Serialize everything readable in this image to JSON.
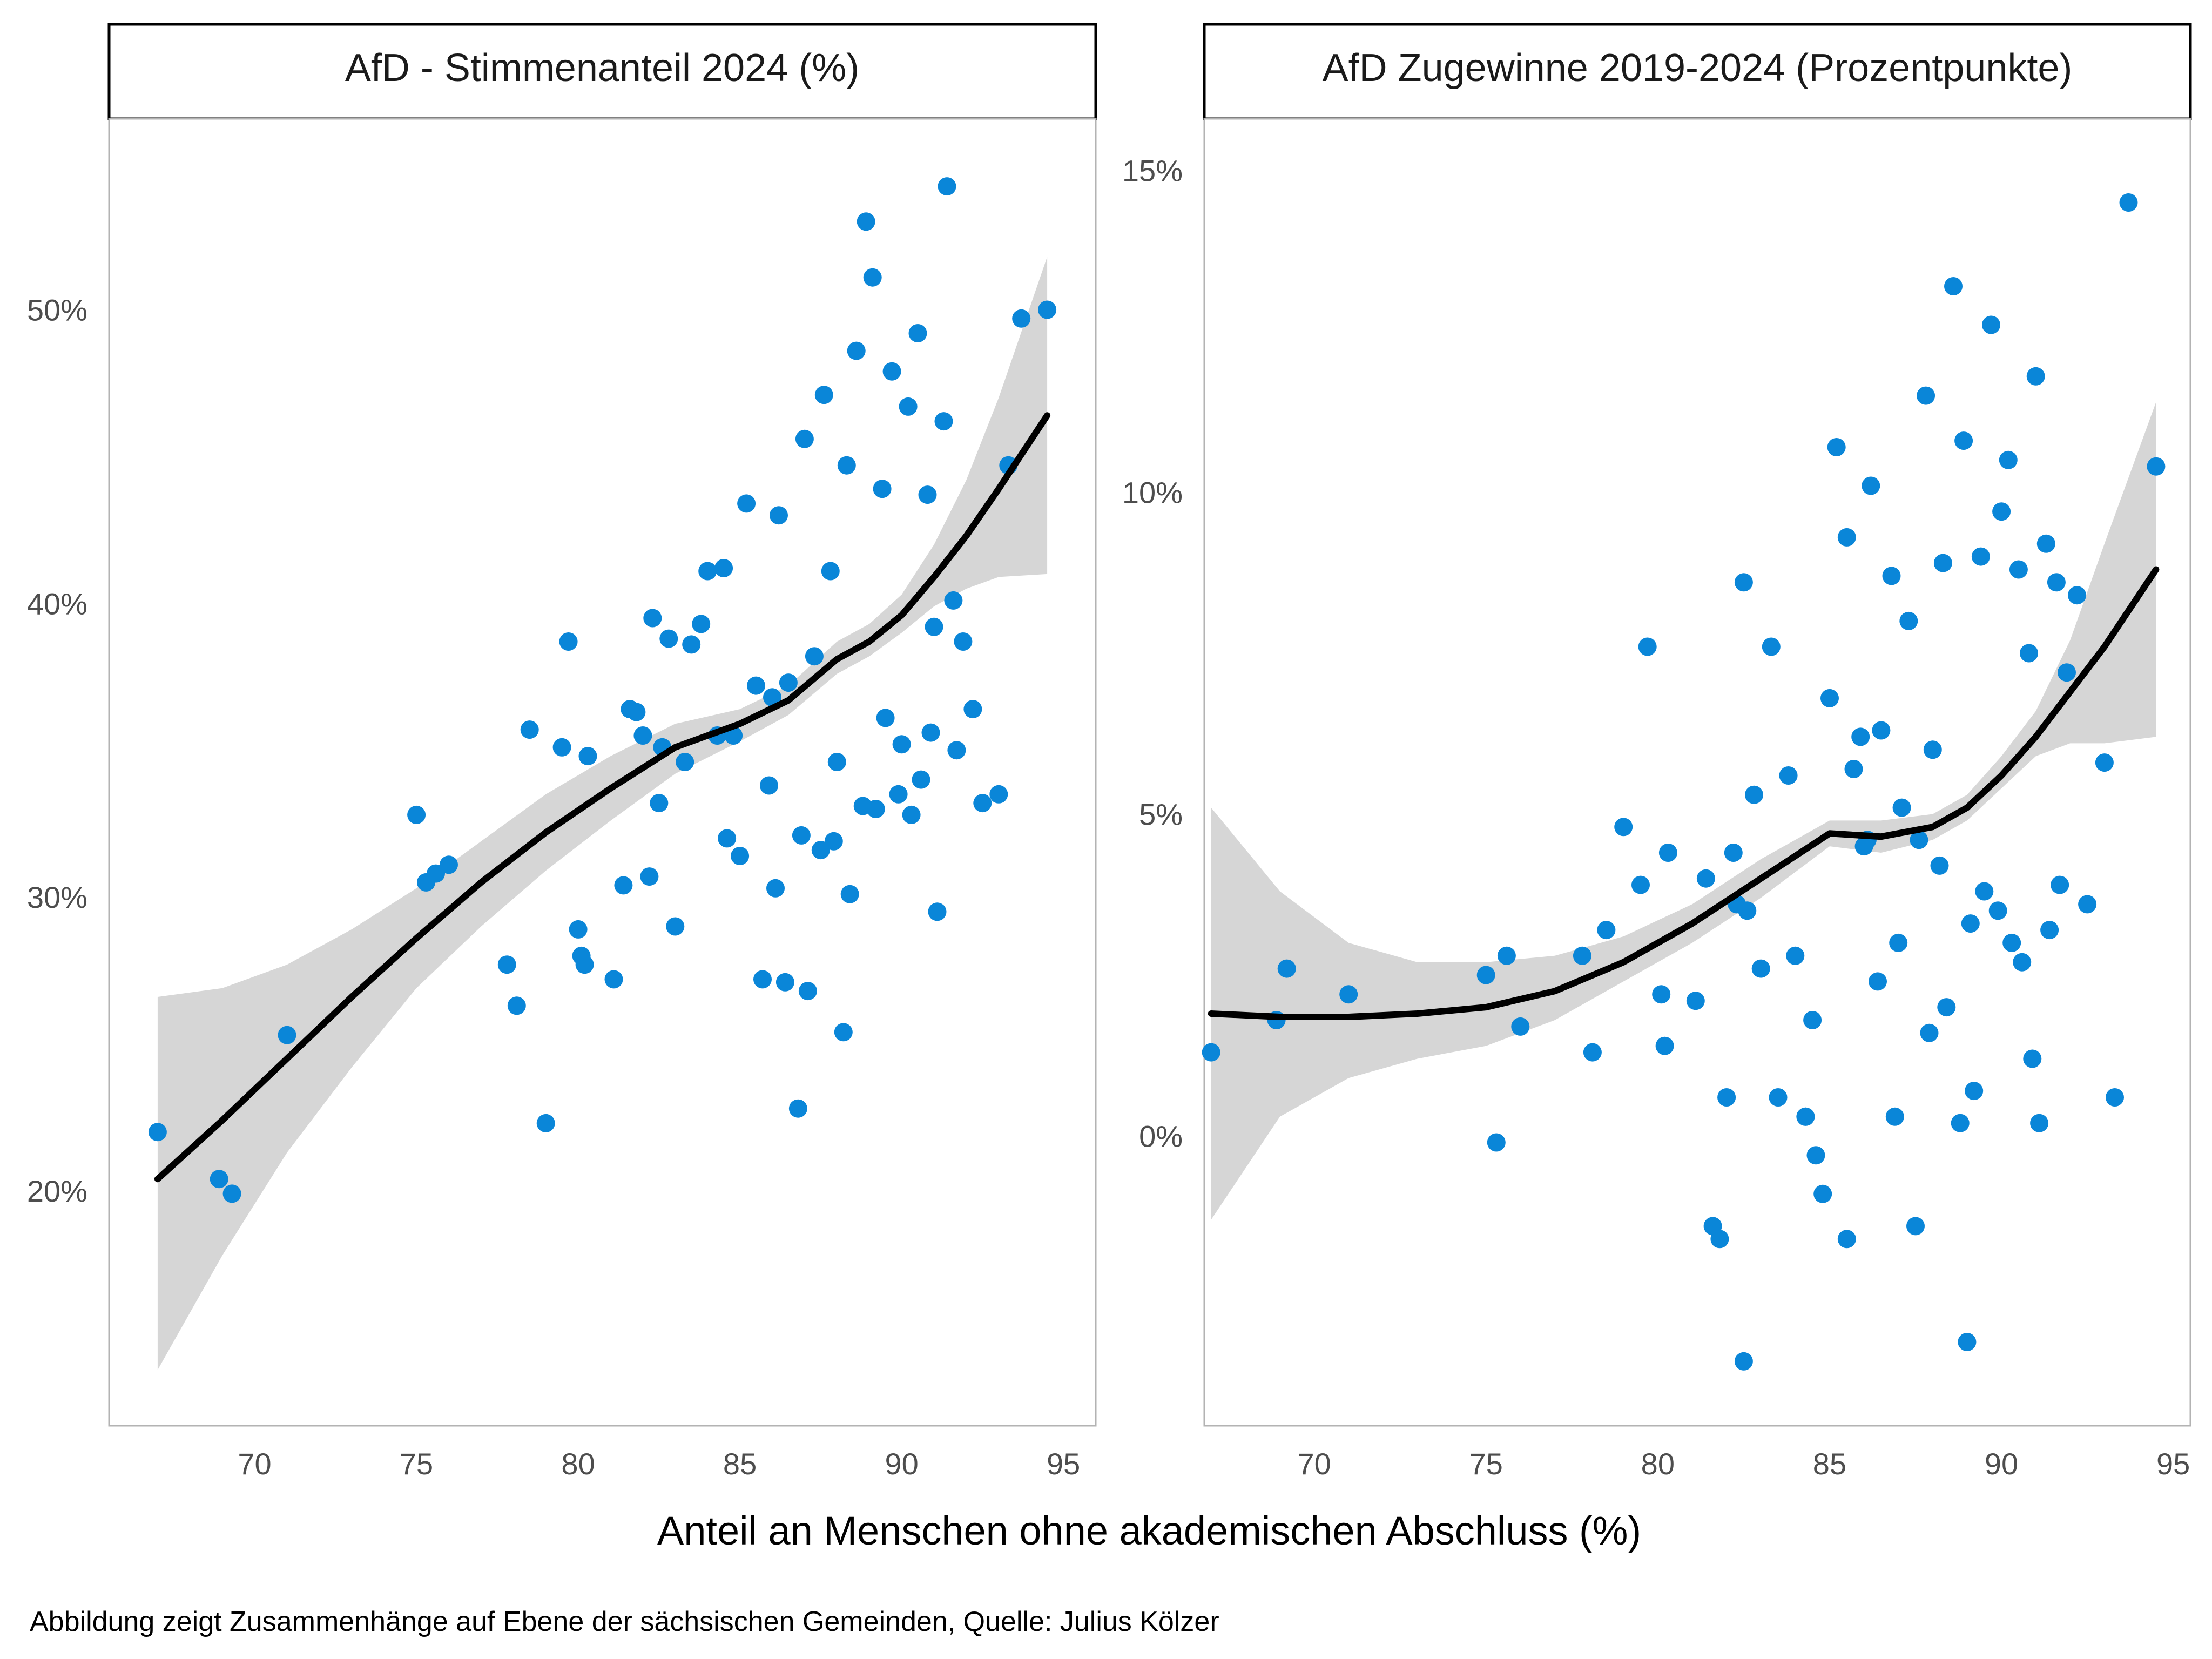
{
  "figure": {
    "xlabel": "Anteil an Menschen ohne akademischen Abschluss (%)",
    "caption": "Abbildung zeigt Zusammenhänge auf Ebene der sächsischen Gemeinden, Quelle: Julius Kölzer"
  },
  "colors": {
    "points": "#0a86d8",
    "smooth_line": "#000000",
    "confidence_band": "#d6d6d6",
    "panel_border": "#b3b3b3",
    "strip_border": "#000000"
  },
  "chart_data": [
    {
      "type": "scatter",
      "title": "AfD - Stimmenanteil 2024 (%)",
      "xlabel": "Anteil an Menschen ohne akademischen Abschluss (%)",
      "ylabel": "",
      "xlim": [
        65.5,
        96
      ],
      "ylim": [
        12,
        56.5
      ],
      "xticks": [
        70,
        75,
        80,
        85,
        90,
        95
      ],
      "xtick_labels": [
        "70",
        "75",
        "80",
        "85",
        "90",
        "95"
      ],
      "yticks": [
        20,
        30,
        40,
        50
      ],
      "ytick_labels": [
        "20%",
        "30%",
        "40%",
        "50%"
      ],
      "grid": false,
      "legend": "none",
      "points": {
        "x": [
          67.0,
          68.9,
          69.3,
          71.0,
          75.0,
          75.3,
          75.6,
          76.0,
          77.8,
          78.1,
          78.5,
          79.0,
          79.5,
          79.7,
          80.0,
          80.1,
          80.2,
          80.3,
          81.1,
          81.4,
          81.6,
          81.8,
          82.0,
          82.2,
          82.3,
          82.5,
          82.6,
          82.8,
          83.0,
          83.3,
          83.5,
          83.8,
          84.0,
          84.3,
          84.5,
          84.8,
          85.0,
          85.2,
          85.5,
          85.7,
          86.0,
          86.2,
          86.5,
          86.8,
          87.0,
          87.3,
          87.6,
          87.8,
          88.0,
          88.3,
          88.6,
          88.9,
          89.1,
          89.4,
          89.7,
          90.0,
          90.2,
          90.5,
          90.8,
          91.0,
          91.3,
          91.6,
          91.9,
          92.2,
          92.5,
          93.0,
          93.3,
          93.7,
          94.5,
          86.4,
          87.1,
          88.2,
          89.5,
          90.6,
          91.4,
          85.9,
          86.9,
          88.8,
          89.9,
          90.9,
          84.6,
          87.5,
          88.4,
          89.2,
          91.1,
          86.1,
          87.9,
          90.3,
          91.7
        ],
        "y": [
          22.0,
          20.4,
          19.9,
          25.3,
          32.8,
          30.5,
          30.8,
          31.1,
          27.7,
          26.3,
          35.7,
          22.3,
          35.1,
          38.7,
          28.9,
          28.0,
          27.7,
          34.8,
          27.2,
          30.4,
          36.4,
          36.3,
          35.5,
          30.7,
          39.5,
          33.2,
          35.1,
          38.8,
          29.0,
          34.6,
          38.6,
          39.3,
          41.1,
          35.5,
          41.2,
          35.5,
          31.4,
          43.4,
          37.2,
          27.2,
          36.8,
          43.0,
          37.3,
          22.8,
          45.6,
          38.2,
          47.1,
          41.1,
          34.6,
          44.7,
          48.6,
          53.0,
          51.1,
          43.9,
          47.9,
          35.2,
          46.7,
          49.2,
          43.7,
          39.2,
          46.2,
          40.1,
          38.7,
          36.4,
          33.2,
          33.5,
          44.7,
          49.7,
          50.0,
          27.1,
          26.8,
          25.4,
          36.1,
          34.0,
          54.2,
          33.8,
          32.1,
          33.1,
          33.5,
          35.6,
          32.0,
          31.6,
          30.1,
          33.0,
          29.5,
          30.3,
          31.9,
          32.8,
          35.0
        ]
      },
      "smooth_curve": {
        "x": [
          67.0,
          69.0,
          71.0,
          73.0,
          75.0,
          77.0,
          79.0,
          81.0,
          83.0,
          85.0,
          86.5,
          88.0,
          89.0,
          90.0,
          91.0,
          92.0,
          93.0,
          94.5
        ],
        "y": [
          20.4,
          22.4,
          24.5,
          26.6,
          28.6,
          30.5,
          32.2,
          33.7,
          35.1,
          35.9,
          36.7,
          38.1,
          38.7,
          39.6,
          40.9,
          42.3,
          43.9,
          46.4
        ]
      },
      "confidence_band": {
        "x": [
          67.0,
          69.0,
          71.0,
          73.0,
          75.0,
          77.0,
          79.0,
          81.0,
          83.0,
          85.0,
          86.5,
          88.0,
          89.0,
          90.0,
          91.0,
          92.0,
          93.0,
          94.5
        ],
        "lower": [
          13.9,
          17.8,
          21.3,
          24.2,
          26.9,
          29.0,
          30.9,
          32.6,
          34.2,
          35.3,
          36.2,
          37.6,
          38.2,
          39.0,
          39.9,
          40.5,
          40.9,
          41.0
        ],
        "upper": [
          26.6,
          26.9,
          27.7,
          28.9,
          30.3,
          31.9,
          33.5,
          34.8,
          35.9,
          36.4,
          37.2,
          38.7,
          39.3,
          40.3,
          42.0,
          44.2,
          47.0,
          51.8
        ]
      }
    },
    {
      "type": "scatter",
      "title": "AfD Zugewinne 2019-2024 (Prozentpunkte)",
      "xlabel": "Anteil an Menschen ohne akademischen Abschluss (%)",
      "ylabel": "",
      "xlim": [
        66.8,
        95.5
      ],
      "ylim": [
        -4.5,
        15.8
      ],
      "xticks": [
        70,
        75,
        80,
        85,
        90,
        95
      ],
      "xtick_labels": [
        "70",
        "75",
        "80",
        "85",
        "90",
        "95"
      ],
      "yticks": [
        0,
        5,
        10,
        15
      ],
      "ytick_labels": [
        "0%",
        "5%",
        "10%",
        "15%"
      ],
      "grid": false,
      "legend": "none",
      "points": {
        "x": [
          67.0,
          68.9,
          69.2,
          71.0,
          75.0,
          75.3,
          75.6,
          76.0,
          77.8,
          78.1,
          78.5,
          79.0,
          79.5,
          79.7,
          80.1,
          80.2,
          80.3,
          81.1,
          81.4,
          81.6,
          81.8,
          82.0,
          82.2,
          82.3,
          82.5,
          82.6,
          82.8,
          83.0,
          83.3,
          83.5,
          83.8,
          84.0,
          84.3,
          84.5,
          84.8,
          85.0,
          85.2,
          85.5,
          85.7,
          86.0,
          86.2,
          86.5,
          86.8,
          87.0,
          87.3,
          87.6,
          87.8,
          88.0,
          88.3,
          88.6,
          88.9,
          89.1,
          89.4,
          89.7,
          90.0,
          90.2,
          90.5,
          90.8,
          91.0,
          91.3,
          91.6,
          91.9,
          92.2,
          92.5,
          93.0,
          93.3,
          93.7,
          94.5,
          86.4,
          87.1,
          88.2,
          89.5,
          90.6,
          91.4,
          85.9,
          86.9,
          88.8,
          89.9,
          90.9,
          84.6,
          87.5,
          88.4,
          89.2,
          91.1,
          86.1,
          87.9,
          90.3,
          91.7,
          82.5,
          89.0,
          85.5,
          84.3
        ],
        "y": [
          1.3,
          1.8,
          2.6,
          2.2,
          2.5,
          -0.1,
          2.8,
          1.7,
          2.8,
          1.3,
          3.2,
          4.8,
          3.9,
          7.6,
          2.2,
          1.4,
          4.4,
          2.1,
          4.0,
          -1.4,
          -1.6,
          0.6,
          4.4,
          3.6,
          8.6,
          3.5,
          5.3,
          2.6,
          7.6,
          0.6,
          5.6,
          2.8,
          0.3,
          1.8,
          -0.9,
          6.8,
          10.7,
          9.3,
          5.7,
          4.5,
          10.1,
          6.3,
          8.7,
          3.0,
          8.0,
          4.6,
          11.5,
          6.0,
          8.9,
          13.2,
          10.8,
          3.3,
          9.0,
          12.6,
          9.7,
          10.5,
          8.8,
          7.5,
          11.8,
          9.2,
          8.6,
          7.2,
          8.4,
          3.6,
          5.8,
          0.6,
          14.5,
          10.4,
          2.4,
          5.1,
          4.2,
          3.8,
          2.7,
          3.2,
          6.2,
          0.3,
          0.2,
          3.5,
          1.2,
          -0.3,
          -1.4,
          2.0,
          0.7,
          0.2,
          4.6,
          1.6,
          3.0,
          3.9,
          -3.5,
          -3.2,
          -1.6,
          0.3
        ]
      },
      "smooth_curve": {
        "x": [
          67.0,
          69.0,
          71.0,
          73.0,
          75.0,
          77.0,
          79.0,
          81.0,
          83.0,
          85.0,
          86.5,
          88.0,
          89.0,
          90.0,
          91.0,
          92.0,
          93.0,
          94.5
        ],
        "y": [
          1.9,
          1.85,
          1.85,
          1.9,
          2.0,
          2.25,
          2.7,
          3.3,
          4.0,
          4.7,
          4.65,
          4.8,
          5.1,
          5.6,
          6.2,
          6.9,
          7.6,
          8.8
        ]
      },
      "confidence_band": {
        "x": [
          67.0,
          69.0,
          71.0,
          73.0,
          75.0,
          77.0,
          79.0,
          81.0,
          83.0,
          85.0,
          86.5,
          88.0,
          89.0,
          90.0,
          91.0,
          92.0,
          93.0,
          94.5
        ],
        "lower": [
          -1.3,
          0.3,
          0.9,
          1.2,
          1.4,
          1.8,
          2.4,
          3.0,
          3.7,
          4.5,
          4.4,
          4.6,
          4.9,
          5.4,
          5.9,
          6.1,
          6.1,
          6.2
        ],
        "upper": [
          5.1,
          3.8,
          3.0,
          2.7,
          2.7,
          2.8,
          3.1,
          3.6,
          4.3,
          4.9,
          4.9,
          5.0,
          5.3,
          5.9,
          6.6,
          7.7,
          9.2,
          11.4
        ]
      }
    }
  ]
}
